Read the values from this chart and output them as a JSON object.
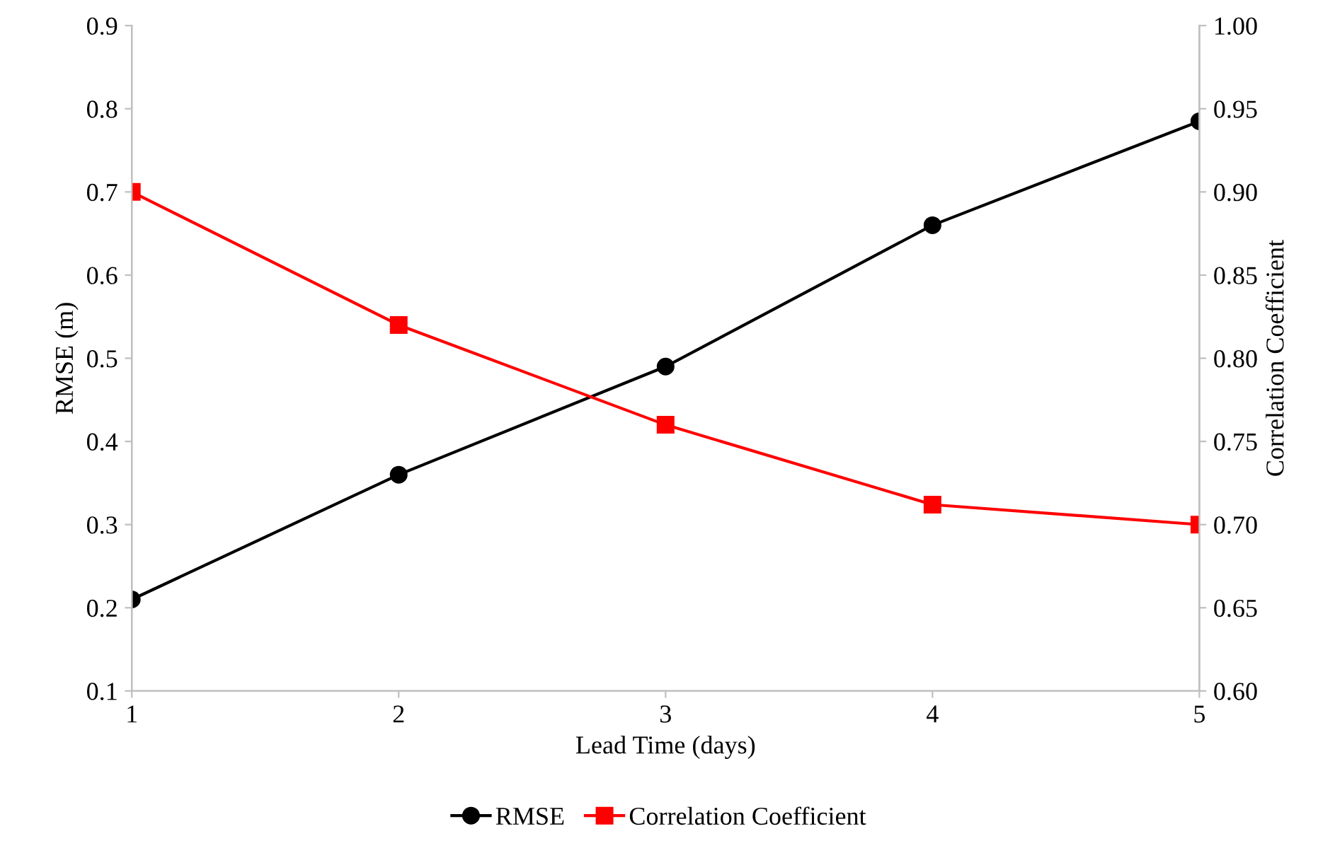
{
  "chart_data": {
    "type": "line",
    "xlabel": "Lead Time (days)",
    "ylabel": "RMSE (m)",
    "y2label": "Correlation Coefficient",
    "x": [
      1,
      2,
      3,
      4,
      5
    ],
    "series": [
      {
        "name": "RMSE",
        "color": "#000000",
        "marker": "circle",
        "values": [
          0.21,
          0.36,
          0.49,
          0.66,
          0.785
        ]
      },
      {
        "name": "Correlation Coefficient",
        "color": "#ff0000",
        "marker": "square",
        "axis": "y2",
        "values": [
          0.9,
          0.82,
          0.76,
          0.712,
          0.7
        ]
      }
    ],
    "xlim": [
      1,
      5
    ],
    "xticks": [
      1,
      2,
      3,
      4,
      5
    ],
    "ylim": [
      0.1,
      0.9
    ],
    "yticks": [
      {
        "value": 0.1,
        "label": "0.1"
      },
      {
        "value": 0.2,
        "label": "0.2"
      },
      {
        "value": 0.3,
        "label": "0.3"
      },
      {
        "value": 0.4,
        "label": "0.4"
      },
      {
        "value": 0.5,
        "label": "0.5"
      },
      {
        "value": 0.6,
        "label": "0.6"
      },
      {
        "value": 0.7,
        "label": "0.7"
      },
      {
        "value": 0.8,
        "label": "0.8"
      },
      {
        "value": 0.9,
        "label": "0.9"
      }
    ],
    "y2lim": [
      0.6,
      1.0
    ],
    "y2ticks": [
      {
        "value": 0.6,
        "label": "0.60"
      },
      {
        "value": 0.65,
        "label": "0.65"
      },
      {
        "value": 0.7,
        "label": "0.70"
      },
      {
        "value": 0.75,
        "label": "0.75"
      },
      {
        "value": 0.8,
        "label": "0.80"
      },
      {
        "value": 0.85,
        "label": "0.85"
      },
      {
        "value": 0.9,
        "label": "0.90"
      },
      {
        "value": 0.95,
        "label": "0.95"
      },
      {
        "value": 1.0,
        "label": "1.00"
      }
    ],
    "grid": false,
    "legend": "bottom",
    "line_style": "solid"
  }
}
